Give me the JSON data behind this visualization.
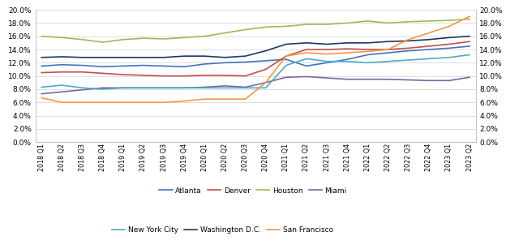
{
  "quarters": [
    "2018 Q1",
    "2018 Q2",
    "2018 Q3",
    "2018 Q4",
    "2019 Q1",
    "2019 Q2",
    "2019 Q3",
    "2019 Q4",
    "2020 Q1",
    "2020 Q2",
    "2020 Q3",
    "2020 Q4",
    "2021 Q1",
    "2021 Q2",
    "2021 Q3",
    "2021 Q4",
    "2022 Q1",
    "2022 Q2",
    "2022 Q3",
    "2022 Q4",
    "2023 Q1",
    "2023 Q2"
  ],
  "series": {
    "Atlanta": [
      0.115,
      0.117,
      0.116,
      0.114,
      0.115,
      0.116,
      0.115,
      0.114,
      0.118,
      0.12,
      0.121,
      0.123,
      0.125,
      0.115,
      0.12,
      0.125,
      0.132,
      0.135,
      0.138,
      0.14,
      0.142,
      0.145
    ],
    "Denver": [
      0.105,
      0.106,
      0.106,
      0.104,
      0.102,
      0.101,
      0.1,
      0.1,
      0.101,
      0.101,
      0.1,
      0.11,
      0.13,
      0.14,
      0.14,
      0.141,
      0.14,
      0.14,
      0.142,
      0.145,
      0.148,
      0.152
    ],
    "Houston": [
      0.16,
      0.158,
      0.155,
      0.151,
      0.155,
      0.157,
      0.156,
      0.158,
      0.16,
      0.165,
      0.17,
      0.174,
      0.175,
      0.178,
      0.178,
      0.18,
      0.183,
      0.18,
      0.182,
      0.183,
      0.184,
      0.186
    ],
    "Miami": [
      0.073,
      0.076,
      0.079,
      0.082,
      0.082,
      0.082,
      0.082,
      0.082,
      0.083,
      0.085,
      0.083,
      0.09,
      0.098,
      0.099,
      0.097,
      0.095,
      0.095,
      0.095,
      0.094,
      0.093,
      0.093,
      0.098
    ],
    "New York City": [
      0.083,
      0.086,
      0.082,
      0.08,
      0.082,
      0.082,
      0.082,
      0.082,
      0.082,
      0.082,
      0.082,
      0.082,
      0.116,
      0.126,
      0.122,
      0.122,
      0.12,
      0.122,
      0.124,
      0.126,
      0.128,
      0.132
    ],
    "Washington D.C.": [
      0.128,
      0.129,
      0.128,
      0.128,
      0.128,
      0.128,
      0.128,
      0.13,
      0.13,
      0.128,
      0.13,
      0.138,
      0.148,
      0.15,
      0.148,
      0.15,
      0.15,
      0.152,
      0.153,
      0.155,
      0.158,
      0.16
    ],
    "San Francisco": [
      0.067,
      0.06,
      0.06,
      0.06,
      0.06,
      0.06,
      0.06,
      0.062,
      0.065,
      0.065,
      0.065,
      0.09,
      0.13,
      0.135,
      0.133,
      0.135,
      0.137,
      0.14,
      0.155,
      0.165,
      0.175,
      0.19
    ]
  },
  "colors": {
    "Atlanta": "#4472C4",
    "Denver": "#C0504D",
    "Houston": "#9BBB59",
    "Miami": "#8064A2",
    "New York City": "#4BACC6",
    "Washington D.C.": "#1F3864",
    "San Francisco": "#F79646"
  },
  "legend_row1": [
    "Atlanta",
    "Denver",
    "Houston",
    "Miami"
  ],
  "legend_row2": [
    "New York City",
    "Washington D.C.",
    "San Francisco"
  ],
  "ylim": [
    0.0,
    0.2
  ],
  "yticks": [
    0.0,
    0.02,
    0.04,
    0.06,
    0.08,
    0.1,
    0.12,
    0.14,
    0.16,
    0.18,
    0.2
  ],
  "linewidth": 1.2,
  "tick_fontsize": 6.5,
  "xtick_fontsize": 5.8
}
